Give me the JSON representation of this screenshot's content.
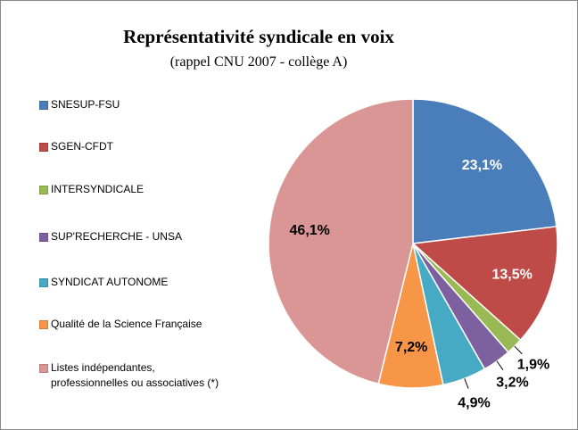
{
  "chart_data": {
    "type": "pie",
    "title": "Représentativité syndicale en voix",
    "subtitle": "(rappel CNU 2007 - collège A)",
    "categories": [
      "SNESUP-FSU",
      "SGEN-CFDT",
      "INTERSYNDICALE",
      "SUP'RECHERCHE - UNSA",
      "SYNDICAT AUTONOME",
      "Qualité de la Science Française",
      "Listes indépendantes,\nprofessionnelles ou associatives (*)"
    ],
    "values": [
      23.1,
      13.5,
      1.9,
      3.2,
      4.9,
      7.2,
      46.1
    ],
    "value_labels": [
      "23,1%",
      "13,5%",
      "1,9%",
      "3,2%",
      "4,9%",
      "7,2%",
      "46,1%"
    ],
    "colors": [
      "#4a7ebb",
      "#be4b48",
      "#98b954",
      "#7d60a0",
      "#46aac5",
      "#f79646",
      "#d99694"
    ],
    "legend": "left"
  }
}
